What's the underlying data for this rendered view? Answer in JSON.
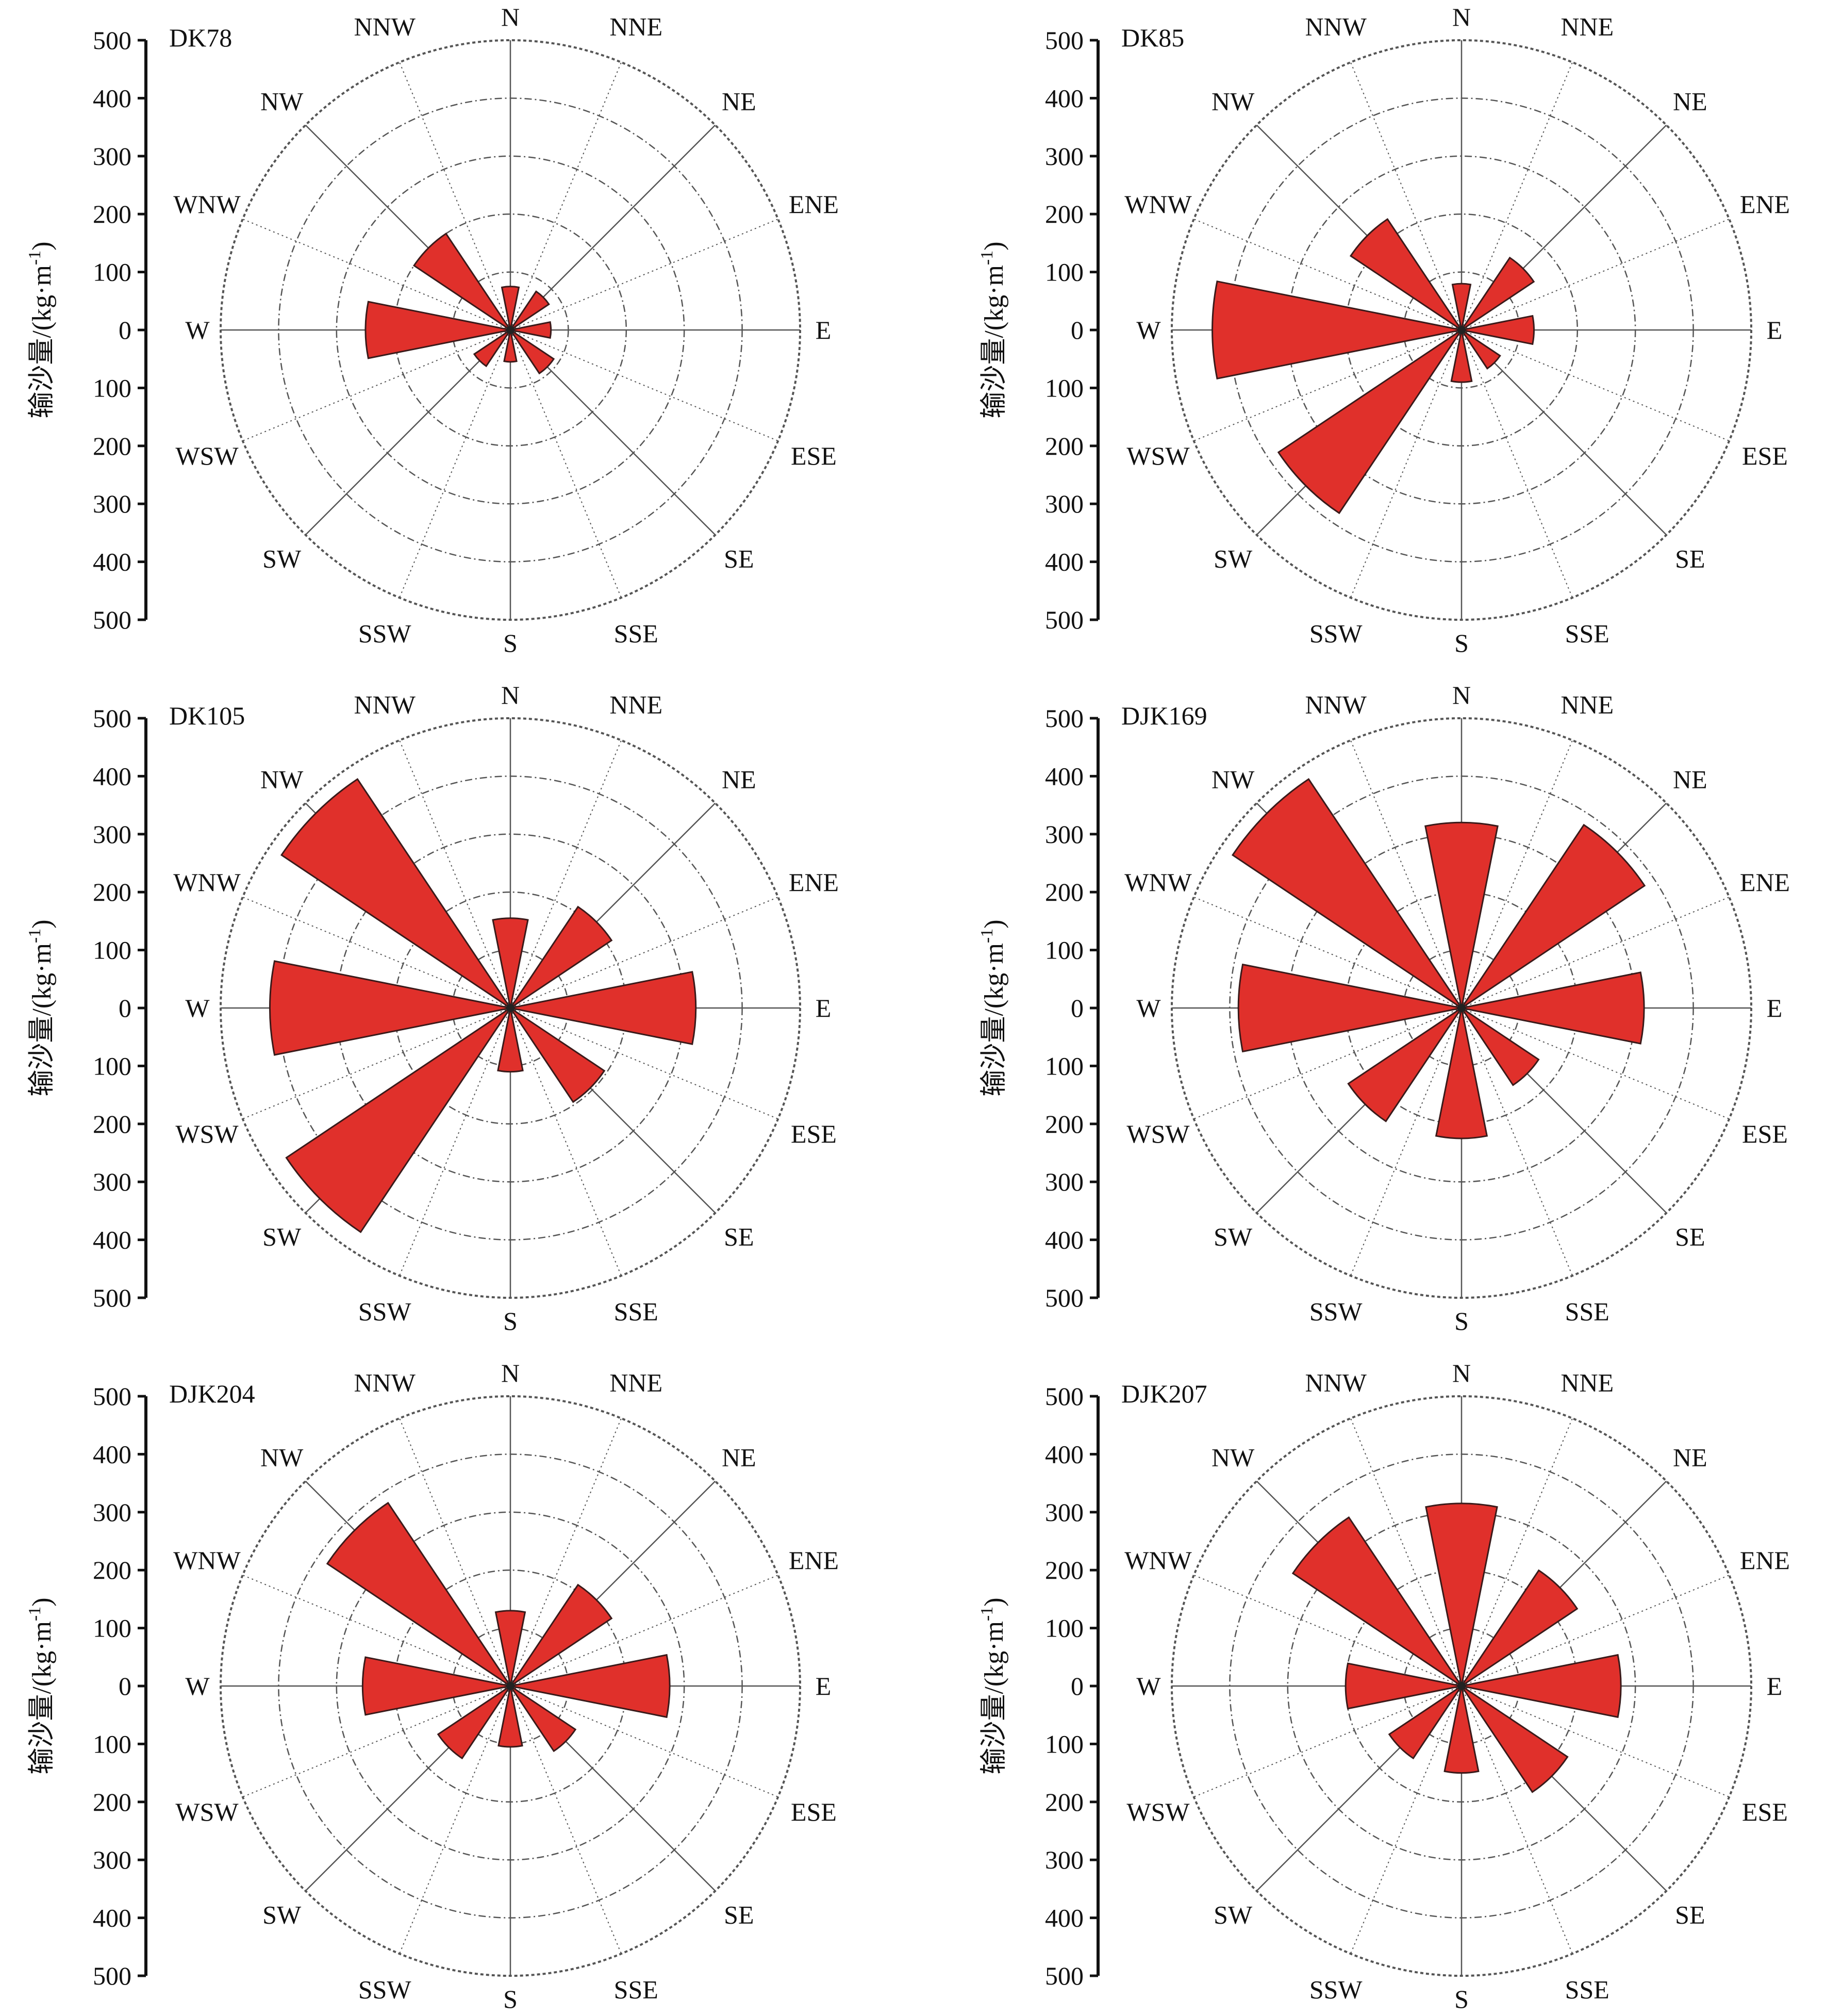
{
  "figure": {
    "y_axis_label": "输沙量/(kg·m",
    "y_axis_label_sup": "-1",
    "y_axis_label_close": ")",
    "directions": [
      "N",
      "NNE",
      "NE",
      "ENE",
      "E",
      "ESE",
      "SE",
      "SSE",
      "S",
      "SSW",
      "SW",
      "WSW",
      "W",
      "WNW",
      "NW",
      "NNW"
    ],
    "axis_ticks": [
      "500",
      "400",
      "300",
      "200",
      "100",
      "0",
      "100",
      "200",
      "300",
      "400",
      "500"
    ]
  },
  "colors": {
    "bar_fill": "#e0302b",
    "bar_stroke": "#3a1a1a",
    "grid": "#555555",
    "axis": "#111111"
  },
  "chart_data": [
    {
      "type": "rose",
      "title": "DK78",
      "directions": [
        "N",
        "NNE",
        "NE",
        "ENE",
        "E",
        "ESE",
        "SE",
        "SSE",
        "S",
        "SSW",
        "SW",
        "WSW",
        "W",
        "WNW",
        "NW",
        "NNW"
      ],
      "values": [
        75,
        0,
        80,
        0,
        70,
        0,
        90,
        0,
        55,
        0,
        75,
        0,
        250,
        0,
        200,
        0
      ],
      "rlim": [
        0,
        500
      ],
      "rings": [
        100,
        200,
        300,
        400,
        500
      ]
    },
    {
      "type": "rose",
      "title": "DK85",
      "directions": [
        "N",
        "NNE",
        "NE",
        "ENE",
        "E",
        "ESE",
        "SE",
        "SSE",
        "S",
        "SSW",
        "SW",
        "WSW",
        "W",
        "WNW",
        "NW",
        "NNW"
      ],
      "values": [
        80,
        0,
        150,
        0,
        125,
        0,
        80,
        0,
        90,
        0,
        380,
        0,
        430,
        0,
        230,
        0
      ],
      "rlim": [
        0,
        500
      ],
      "rings": [
        100,
        200,
        300,
        400,
        500
      ]
    },
    {
      "type": "rose",
      "title": "DK105",
      "directions": [
        "N",
        "NNE",
        "NE",
        "ENE",
        "E",
        "ESE",
        "SE",
        "SSE",
        "S",
        "SSW",
        "SW",
        "WSW",
        "W",
        "WNW",
        "NW",
        "NNW"
      ],
      "values": [
        155,
        0,
        210,
        0,
        320,
        0,
        195,
        0,
        110,
        0,
        465,
        0,
        415,
        0,
        475,
        0
      ],
      "rlim": [
        0,
        500
      ],
      "rings": [
        100,
        200,
        300,
        400,
        500
      ]
    },
    {
      "type": "rose",
      "title": "DJK169",
      "directions": [
        "N",
        "NNE",
        "NE",
        "ENE",
        "E",
        "ESE",
        "SE",
        "SSE",
        "S",
        "SSW",
        "SW",
        "WSW",
        "W",
        "WNW",
        "NW",
        "NNW"
      ],
      "values": [
        320,
        0,
        380,
        0,
        315,
        0,
        160,
        0,
        225,
        0,
        235,
        0,
        385,
        0,
        475,
        0
      ],
      "rlim": [
        0,
        500
      ],
      "rings": [
        100,
        200,
        300,
        400,
        500
      ]
    },
    {
      "type": "rose",
      "title": "DJK204",
      "directions": [
        "N",
        "NNE",
        "NE",
        "ENE",
        "E",
        "ESE",
        "SE",
        "SSE",
        "S",
        "SSW",
        "SW",
        "WSW",
        "W",
        "WNW",
        "NW",
        "NNW"
      ],
      "values": [
        130,
        0,
        210,
        0,
        275,
        0,
        135,
        0,
        105,
        0,
        150,
        0,
        255,
        0,
        380,
        0
      ],
      "rlim": [
        0,
        500
      ],
      "rings": [
        100,
        200,
        300,
        400,
        500
      ]
    },
    {
      "type": "rose",
      "title": "DJK207",
      "directions": [
        "N",
        "NNE",
        "NE",
        "ENE",
        "E",
        "ESE",
        "SE",
        "SSE",
        "S",
        "SSW",
        "SW",
        "WSW",
        "W",
        "WNW",
        "NW",
        "NNW"
      ],
      "values": [
        315,
        0,
        240,
        0,
        275,
        0,
        220,
        0,
        150,
        0,
        150,
        0,
        200,
        0,
        350,
        0
      ],
      "rlim": [
        0,
        500
      ],
      "rings": [
        100,
        200,
        300,
        400,
        500
      ]
    }
  ]
}
